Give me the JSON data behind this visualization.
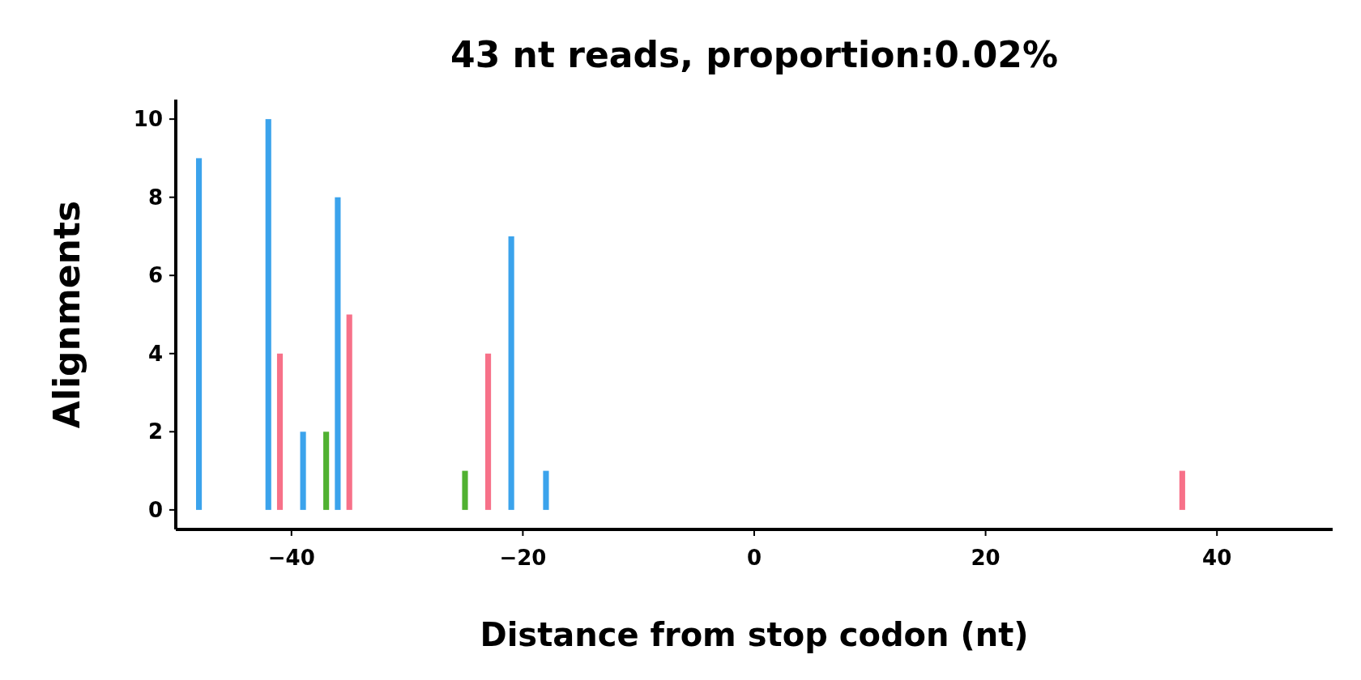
{
  "chart_data": {
    "type": "bar",
    "title": "43 nt reads, proportion:0.02%",
    "xlabel": "Distance from stop codon (nt)",
    "ylabel": "Alignments",
    "series": [
      {
        "color": "#3ba3ec",
        "x": [
          -48,
          -42,
          -39,
          -36,
          -21,
          -18
        ],
        "values": [
          9,
          10,
          2,
          8,
          7,
          1
        ]
      },
      {
        "color": "#f77189",
        "x": [
          -41,
          -35,
          -23,
          37
        ],
        "values": [
          4,
          5,
          4,
          1
        ]
      },
      {
        "color": "#50b131",
        "x": [
          -37,
          -25
        ],
        "values": [
          2,
          1
        ]
      }
    ],
    "xlim": [
      -50,
      50
    ],
    "xticks": [
      {
        "value": -40,
        "label": "−40"
      },
      {
        "value": -20,
        "label": "−20"
      },
      0,
      20,
      40
    ],
    "ylim": [
      -0.5,
      10.5
    ],
    "yticks": [
      0,
      2,
      4,
      6,
      8,
      10
    ]
  }
}
